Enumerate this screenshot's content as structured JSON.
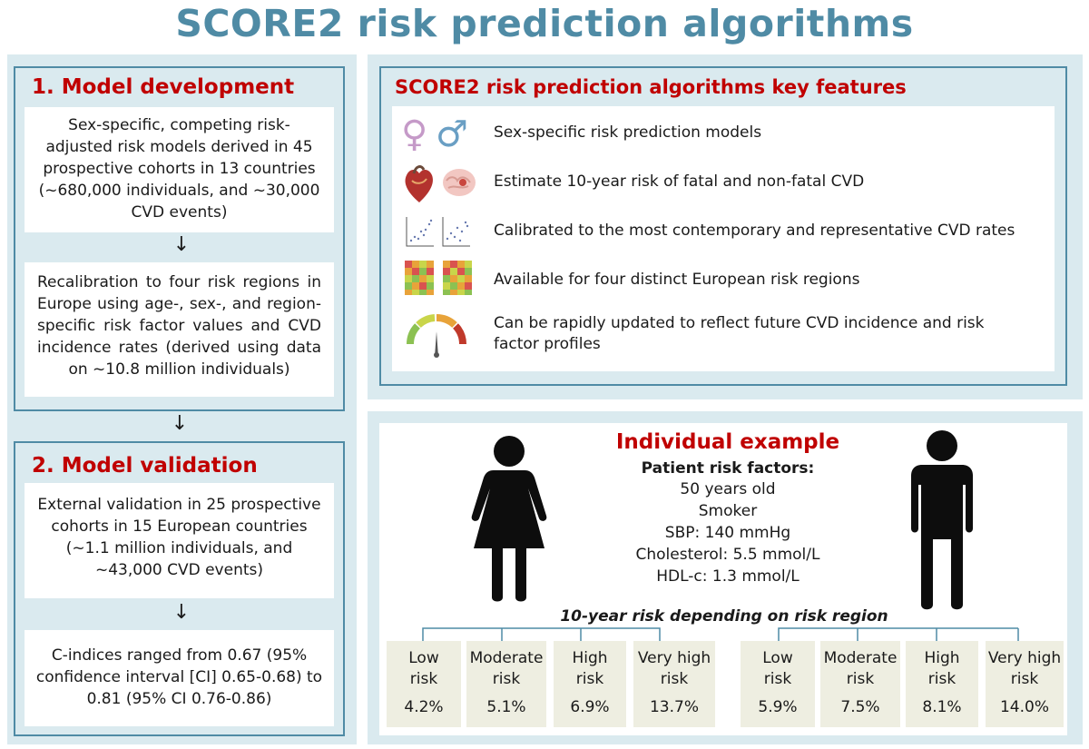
{
  "title": "SCORE2 risk prediction algorithms",
  "development": {
    "heading": "1. Model development",
    "box1": "Sex-specific, competing risk-adjusted risk models derived in 45 prospective cohorts in 13 countries (~680,000 individuals, and ~30,000 CVD events)",
    "box2": "Recalibration to four risk regions in Europe using age-, sex-, and region-specific risk factor values and CVD incidence rates (derived using data on ~10.8 million individuals)"
  },
  "validation": {
    "heading": "2. Model validation",
    "box1": "External validation in 25 prospective cohorts in 15 European countries (~1.1 million individuals, and ~43,000 CVD events)",
    "box2": "C-indices ranged from 0.67 (95% confidence interval [CI] 0.65-0.68) to 0.81 (95% CI 0.76-0.86)"
  },
  "arrow": "↓",
  "features": {
    "heading": "SCORE2 risk prediction algorithms key features",
    "items": [
      {
        "icon": "sex-symbols-icon",
        "text": "Sex-specific risk prediction models"
      },
      {
        "icon": "heart-brain-icon",
        "text": "Estimate 10-year risk of fatal and non-fatal CVD"
      },
      {
        "icon": "scatter-plot-icon",
        "text": "Calibrated to the most contemporary and representative CVD rates"
      },
      {
        "icon": "heatmap-icon",
        "text": "Available for four distinct European risk regions"
      },
      {
        "icon": "gauge-icon",
        "text": "Can be rapidly updated to reflect future CVD incidence and risk factor profiles"
      }
    ],
    "female_symbol": "♀",
    "male_symbol": "♂"
  },
  "example": {
    "heading": "Individual example",
    "subheading": "Patient risk factors:",
    "factors": [
      "50 years old",
      "Smoker",
      "SBP: 140 mmHg",
      "Cholesterol: 5.5 mmol/L",
      "HDL-c: 1.3 mmol/L"
    ],
    "risk_caption": "10-year risk depending on risk region",
    "female": [
      {
        "label": "Low risk",
        "value": "4.2%"
      },
      {
        "label": "Moderate risk",
        "value": "5.1%"
      },
      {
        "label": "High risk",
        "value": "6.9%"
      },
      {
        "label": "Very high risk",
        "value": "13.7%"
      }
    ],
    "male": [
      {
        "label": "Low risk",
        "value": "5.9%"
      },
      {
        "label": "Moderate risk",
        "value": "7.5%"
      },
      {
        "label": "High risk",
        "value": "8.1%"
      },
      {
        "label": "Very high risk",
        "value": "14.0%"
      }
    ]
  },
  "colors": {
    "title": "#4f8ba5",
    "heading": "#c00000",
    "panel": "#daeaef",
    "border": "#4f8ba5",
    "card": "#eeeee1"
  }
}
